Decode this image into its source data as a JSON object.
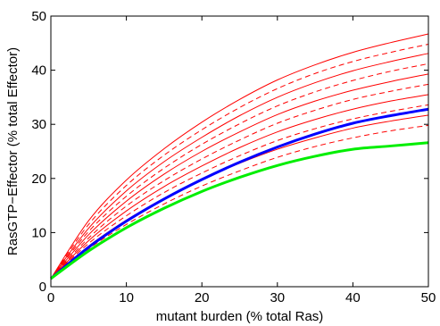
{
  "chart_data": {
    "type": "line",
    "xlabel": "mutant burden (% total Ras)",
    "ylabel": "RasGTP−Effector (% total Effector)",
    "xlim": [
      0,
      50
    ],
    "ylim": [
      0,
      50
    ],
    "x_ticks": [
      "0",
      "10",
      "20",
      "30",
      "40",
      "50"
    ],
    "y_ticks": [
      "0",
      "10",
      "20",
      "30",
      "40",
      "50"
    ],
    "grid": false,
    "legend": "none",
    "x": [
      0,
      5,
      10,
      15,
      20,
      25,
      30,
      35,
      40,
      45,
      50
    ],
    "series": [
      {
        "color": "#ff0000",
        "style": "solid",
        "width": 1,
        "values": [
          1.5,
          12.2,
          19.7,
          25.5,
          30.4,
          34.6,
          38.2,
          41.0,
          43.3,
          45.1,
          46.7
        ]
      },
      {
        "color": "#ff0000",
        "style": "dashed",
        "width": 1,
        "values": [
          1.5,
          11.5,
          18.7,
          24.3,
          29.0,
          33.1,
          36.6,
          39.4,
          41.6,
          43.3,
          44.8
        ]
      },
      {
        "color": "#ff0000",
        "style": "solid",
        "width": 1,
        "values": [
          1.5,
          10.8,
          17.7,
          23.1,
          27.6,
          31.6,
          35.0,
          37.7,
          39.9,
          41.6,
          43.1
        ]
      },
      {
        "color": "#ff0000",
        "style": "dashed",
        "width": 1,
        "values": [
          1.5,
          10.2,
          16.7,
          21.9,
          26.3,
          30.1,
          33.4,
          36.0,
          38.1,
          39.8,
          41.2
        ]
      },
      {
        "color": "#ff0000",
        "style": "solid",
        "width": 1,
        "values": [
          1.5,
          9.6,
          15.8,
          20.8,
          25.0,
          28.6,
          31.8,
          34.3,
          36.3,
          37.9,
          39.3
        ]
      },
      {
        "color": "#ff0000",
        "style": "dashed",
        "width": 1,
        "values": [
          1.5,
          9.0,
          14.9,
          19.6,
          23.6,
          27.1,
          30.2,
          32.6,
          34.6,
          36.1,
          37.4
        ]
      },
      {
        "color": "#ff0000",
        "style": "solid",
        "width": 1,
        "values": [
          1.5,
          8.5,
          14.0,
          18.5,
          22.3,
          25.7,
          28.6,
          30.9,
          32.8,
          34.3,
          35.5
        ]
      },
      {
        "color": "#ff0000",
        "style": "dashed",
        "width": 1,
        "values": [
          1.5,
          8.0,
          13.1,
          17.4,
          21.0,
          24.2,
          27.0,
          29.2,
          31.0,
          32.4,
          33.6
        ]
      },
      {
        "color": "#ff0000",
        "style": "solid",
        "width": 1,
        "values": [
          1.5,
          7.5,
          12.3,
          16.3,
          19.8,
          22.8,
          25.4,
          27.5,
          29.3,
          30.6,
          31.7
        ]
      },
      {
        "color": "#ff0000",
        "style": "dashed",
        "width": 1,
        "values": [
          1.5,
          7.0,
          11.5,
          15.3,
          18.6,
          21.4,
          23.9,
          25.9,
          27.5,
          28.8,
          29.8
        ]
      },
      {
        "color": "#0000ff",
        "style": "solid",
        "width": 3,
        "values": [
          1.5,
          7.3,
          12.1,
          16.2,
          19.8,
          23.0,
          25.8,
          28.2,
          30.2,
          31.6,
          32.8
        ]
      },
      {
        "color": "#00ee00",
        "style": "solid",
        "width": 3,
        "values": [
          1.5,
          6.6,
          10.9,
          14.5,
          17.6,
          20.2,
          22.4,
          24.1,
          25.4,
          26.0,
          26.6
        ]
      }
    ]
  }
}
